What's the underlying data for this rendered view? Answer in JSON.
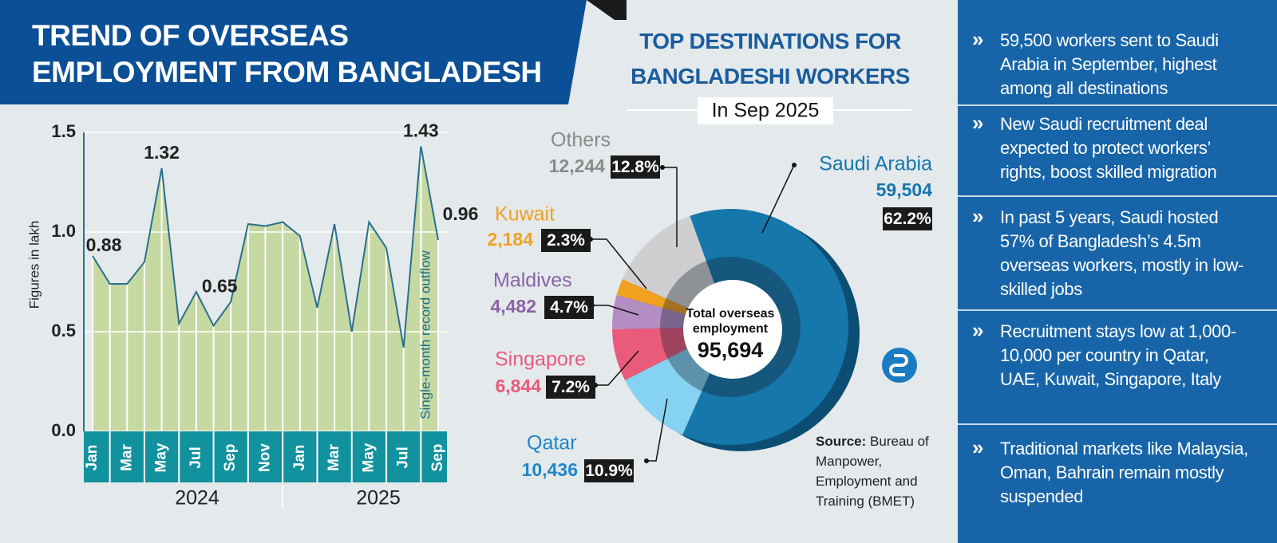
{
  "chart_data": [
    {
      "type": "area",
      "title": "TREND OF OVERSEAS EMPLOYMENT FROM BANGLADESH",
      "ylabel": "Figures in lakh",
      "categories": [
        "Jan",
        null,
        "Mar",
        null,
        "May",
        null,
        "Jul",
        null,
        "Sep",
        null,
        "Nov",
        null,
        "Jan",
        null,
        "Mar",
        null,
        "May",
        null,
        "Jul",
        null,
        "Sep"
      ],
      "year_labels": [
        "2024",
        "2025"
      ],
      "values": [
        0.88,
        0.74,
        0.74,
        0.85,
        1.32,
        0.54,
        0.7,
        0.53,
        0.65,
        1.04,
        1.03,
        1.05,
        0.98,
        0.62,
        1.04,
        0.5,
        1.05,
        0.92,
        0.42,
        1.43,
        0.96
      ],
      "value_labels": [
        "0.88",
        null,
        null,
        null,
        "1.32",
        null,
        null,
        null,
        "0.65",
        null,
        null,
        null,
        null,
        null,
        null,
        null,
        null,
        null,
        null,
        "1.43",
        "0.96"
      ],
      "color": "#c6d9a3",
      "line_color": "#2b6f8c",
      "ylim": [
        0,
        1.5
      ],
      "yticks": [
        {
          "value": 0,
          "label": "0.0"
        },
        0.5,
        {
          "value": 1,
          "label": "1.0"
        },
        1.5
      ],
      "grid": true,
      "annotation": "Single-month record outflow"
    },
    {
      "type": "pie",
      "title": "TOP DESTINATIONS FOR BANGLADESHI WORKERS",
      "subtitle": "In Sep 2025",
      "categories": [
        "Saudi Arabia",
        "Qatar",
        "Singapore",
        "Maldives",
        "Kuwait",
        "Others"
      ],
      "values": [
        59504,
        10436,
        6844,
        4482,
        2184,
        12244
      ],
      "value_labels": [
        "59,504",
        "10,436",
        "6,844",
        "4,482",
        "2,184",
        "12,244"
      ],
      "percent_labels": [
        "62.2%",
        "10.9%",
        "7.2%",
        "4.7%",
        "2.3%",
        "12.8%"
      ],
      "colors": [
        "#1677ab",
        "#86d2f2",
        "#ea5a7b",
        "#b48dc2",
        "#f0a11f",
        "#cfcfd1"
      ],
      "center_label": "Total overseas employment",
      "center_value": "95,694"
    }
  ],
  "source_label": "Source:",
  "source": "Bureau of Manpower, Employment and Training (BMET)",
  "notes": [
    "59,500 workers sent to Saudi Arabia in September, highest among all destinations",
    "New Saudi recruitment deal expected to protect workers’ rights, boost skilled migration",
    "In past 5 years, Saudi hosted 57% of Bangladesh’s 4.5m overseas workers, mostly in low-skilled jobs",
    "Recruitment stays low at 1,000-10,000 per country in Qatar, UAE, Kuwait, Singapore, Italy",
    "Traditional markets like Malaysia, Oman, Bahrain remain mostly suspended"
  ]
}
